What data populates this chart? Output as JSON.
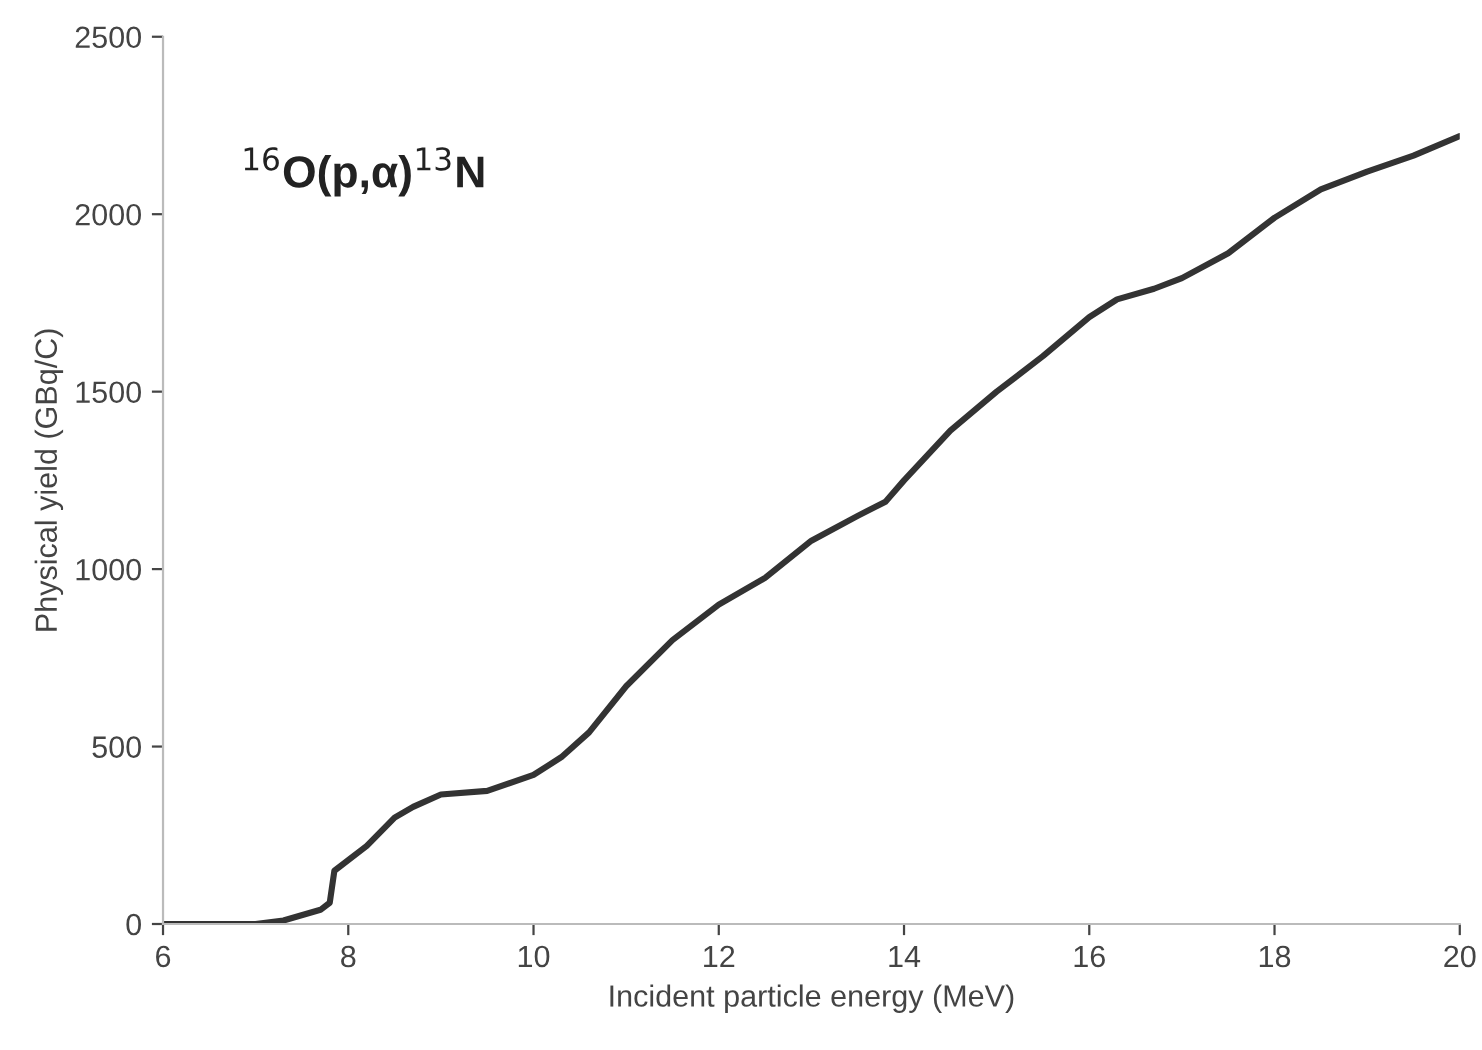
{
  "chart_data": {
    "type": "line",
    "xlabel": "Incident particle energy (MeV)",
    "ylabel": "Physical yield (GBq/C)",
    "annotations": [
      "$^{16}$O(p,α)$^{13}$N"
    ],
    "xlim": [
      6,
      20
    ],
    "xticks": [
      6,
      8,
      10,
      12,
      14,
      16,
      18,
      20
    ],
    "ylim": [
      0,
      2500
    ],
    "yticks": [
      0,
      500,
      1000,
      1500,
      2000,
      2500
    ],
    "grid": false,
    "marker": "none",
    "line_style": "solid",
    "series": [
      {
        "color": "#333333",
        "x": [
          6,
          7.0,
          7.3,
          7.7,
          7.8,
          7.85,
          8.2,
          8.5,
          8.7,
          9.0,
          9.5,
          10.0,
          10.3,
          10.6,
          11.0,
          11.5,
          12.0,
          12.5,
          13.0,
          13.5,
          13.8,
          14.0,
          14.5,
          15.0,
          15.5,
          16.0,
          16.3,
          16.7,
          17.0,
          17.5,
          18.0,
          18.5,
          19.0,
          19.5,
          20.0
        ],
        "values": [
          0,
          0,
          10,
          40,
          60,
          150,
          220,
          300,
          330,
          365,
          375,
          420,
          470,
          540,
          670,
          800,
          900,
          975,
          1080,
          1150,
          1190,
          1250,
          1390,
          1500,
          1600,
          1710,
          1760,
          1790,
          1820,
          1890,
          1990,
          2070,
          2120,
          2165,
          2220
        ]
      }
    ]
  }
}
